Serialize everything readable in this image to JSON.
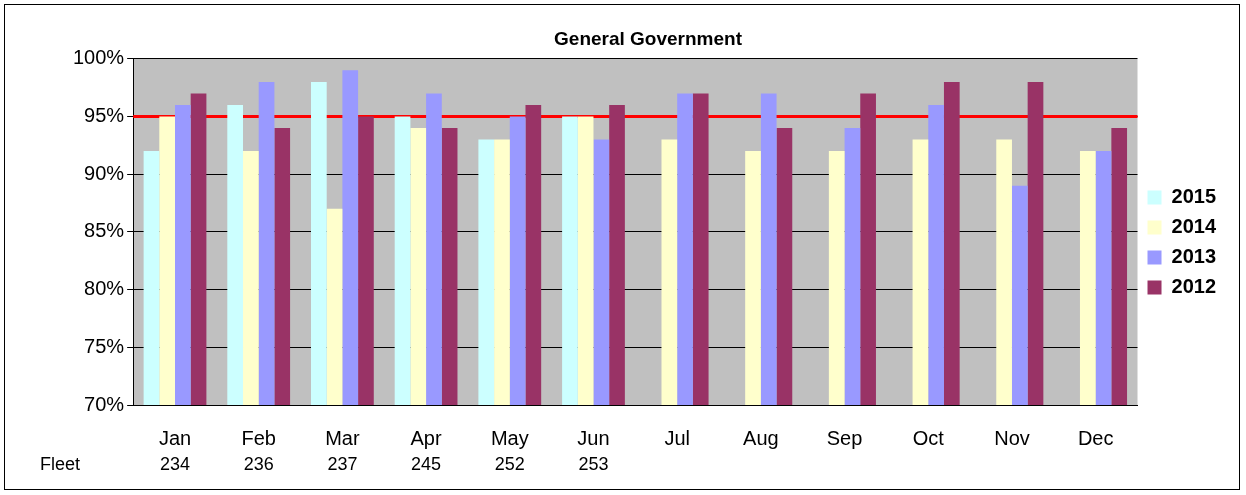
{
  "chart_data": {
    "type": "bar",
    "title": "General Government",
    "categories": [
      "Jan",
      "Feb",
      "Mar",
      "Apr",
      "May",
      "Jun",
      "Jul",
      "Aug",
      "Sep",
      "Oct",
      "Nov",
      "Dec"
    ],
    "series": [
      {
        "name": "2015",
        "color": "#ccffff",
        "values": [
          92,
          96,
          98,
          95,
          93,
          95,
          null,
          null,
          null,
          null,
          null,
          null
        ]
      },
      {
        "name": "2014",
        "color": "#ffffcc",
        "values": [
          95,
          92,
          87,
          94,
          93,
          95,
          93,
          92,
          92,
          93,
          93,
          92
        ]
      },
      {
        "name": "2013",
        "color": "#9999ff",
        "values": [
          96,
          98,
          99,
          97,
          95,
          93,
          97,
          97,
          94,
          96,
          89,
          92
        ]
      },
      {
        "name": "2012",
        "color": "#993366",
        "values": [
          97,
          94,
          95,
          94,
          96,
          96,
          97,
          94,
          97,
          98,
          98,
          94
        ]
      }
    ],
    "ylim": [
      70,
      100
    ],
    "yticks": [
      {
        "value": 70,
        "label": "70%"
      },
      {
        "value": 75,
        "label": "75%"
      },
      {
        "value": 80,
        "label": "80%"
      },
      {
        "value": 85,
        "label": "85%"
      },
      {
        "value": 90,
        "label": "90%"
      },
      {
        "value": 95,
        "label": "95%"
      },
      {
        "value": 100,
        "label": "100%"
      }
    ],
    "ref_lines": [
      {
        "axis": "y",
        "value": 95,
        "color": "#ff0000"
      }
    ],
    "grid": "y",
    "legend": "right",
    "annotations": [
      "Fleet",
      {
        "text": "234",
        "x": "Jan"
      },
      {
        "text": "236",
        "x": "Feb"
      },
      {
        "text": "237",
        "x": "Mar"
      },
      {
        "text": "245",
        "x": "Apr"
      },
      {
        "text": "252",
        "x": "May"
      },
      {
        "text": "253",
        "x": "Jun"
      }
    ]
  }
}
